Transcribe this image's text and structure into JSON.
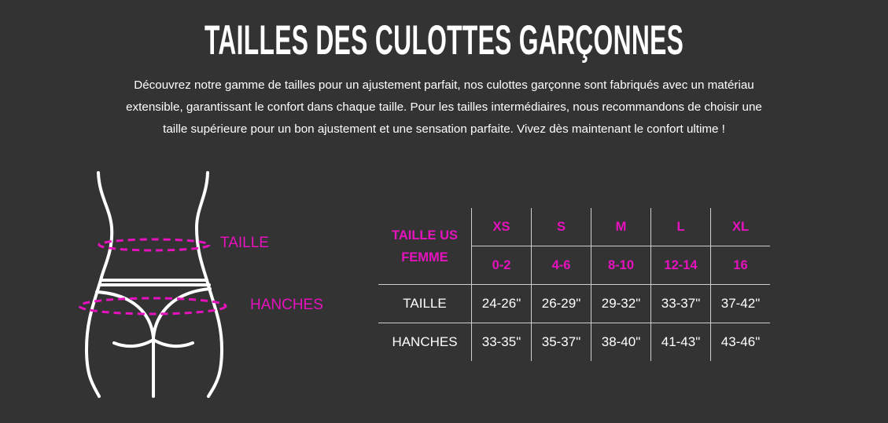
{
  "title": "TAILLES DES CULOTTES GARÇONNES",
  "intro_lines": [
    "Découvrez notre gamme de tailles pour un ajustement parfait, nos culottes garçonne sont fabriqués avec un matériau",
    "extensible, garantissant le confort dans chaque taille. Pour les tailles intermédiaires, nous recommandons de choisir une",
    "taille supérieure pour un bon ajustement et une sensation parfaite. Vivez dès maintenant le confort ultime !"
  ],
  "figure": {
    "waist_label": "TAILLE",
    "hip_label": "HANCHES",
    "icon": "body-silhouette-icon"
  },
  "colors": {
    "background": "#333333",
    "accent": "#e612be",
    "text": "#ffffff"
  },
  "table": {
    "header_label": [
      "TAILLE US",
      "FEMME"
    ],
    "sizes": [
      "XS",
      "S",
      "M",
      "L",
      "XL"
    ],
    "us_sizes": [
      "0-2",
      "4-6",
      "8-10",
      "12-14",
      "16"
    ],
    "rows": [
      {
        "label": "TAILLE",
        "values": [
          "24-26\"",
          "26-29\"",
          "29-32\"",
          "33-37\"",
          "37-42\""
        ]
      },
      {
        "label": "HANCHES",
        "values": [
          "33-35\"",
          "35-37\"",
          "38-40\"",
          "41-43\"",
          "43-46\""
        ]
      }
    ]
  }
}
